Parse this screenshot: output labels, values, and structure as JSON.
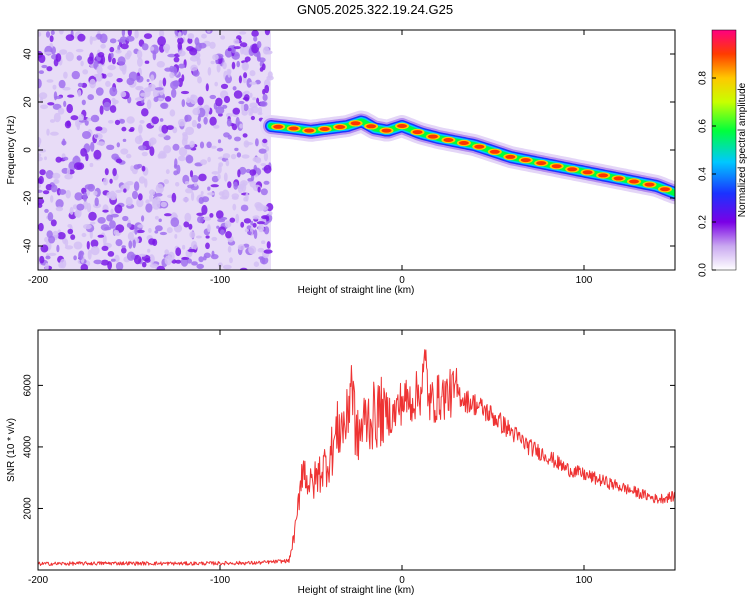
{
  "title": "GN05.2025.322.19.24.G25",
  "chart_data": [
    {
      "type": "heatmap",
      "name": "spectrogram",
      "xlabel": "Height of straight line (km)",
      "ylabel": "Frequency (Hz)",
      "xlim": [
        -200,
        150
      ],
      "ylim": [
        -50,
        50
      ],
      "xticks": [
        -200,
        -100,
        0,
        100
      ],
      "xtick_labels": [
        "-200",
        "-100",
        "0",
        "100"
      ],
      "yticks": [
        -40,
        -20,
        0,
        20,
        40
      ],
      "ytick_labels": [
        "-40",
        "-20",
        "0",
        "20",
        "40"
      ],
      "noise_region_km": [
        -200,
        -72
      ],
      "signal_track": {
        "x": [
          -72,
          -60,
          -50,
          -40,
          -30,
          -22,
          -15,
          -8,
          0,
          10,
          20,
          40,
          60,
          80,
          100,
          120,
          140,
          150
        ],
        "freq": [
          10,
          9,
          8,
          9,
          10,
          12,
          9,
          8,
          10,
          7,
          5,
          2,
          -3,
          -6,
          -9,
          -12,
          -15,
          -18
        ]
      },
      "colorbar": {
        "label": "Normalized spectral amplitude",
        "range": [
          0,
          1
        ],
        "ticks": [
          0.0,
          0.2,
          0.4,
          0.6,
          0.8
        ],
        "tick_labels": [
          "0.0",
          "0.2",
          "0.4",
          "0.6",
          "0.8"
        ]
      }
    },
    {
      "type": "line",
      "name": "snr",
      "xlabel": "Height of straight line (km)",
      "ylabel": "SNR (10 * v/v)",
      "xlim": [
        -200,
        150
      ],
      "ylim": [
        0,
        7800
      ],
      "xticks": [
        -200,
        -100,
        0,
        100
      ],
      "xtick_labels": [
        "-200",
        "-100",
        "0",
        "100"
      ],
      "yticks": [
        2000,
        4000,
        6000
      ],
      "ytick_labels": [
        "2000",
        "4000",
        "6000"
      ],
      "color": "#ee3333",
      "series": [
        {
          "name": "SNR",
          "x": [
            -200,
            -160,
            -120,
            -80,
            -62,
            -58,
            -55,
            -50,
            -45,
            -40,
            -35,
            -30,
            -28,
            -25,
            -20,
            -15,
            -10,
            -5,
            0,
            5,
            10,
            13,
            15,
            20,
            25,
            30,
            35,
            40,
            50,
            60,
            70,
            80,
            90,
            100,
            110,
            120,
            130,
            140,
            150
          ],
          "y": [
            200,
            220,
            210,
            230,
            300,
            1500,
            3400,
            2700,
            3200,
            3600,
            4600,
            4800,
            6500,
            4200,
            4900,
            5000,
            5200,
            5000,
            5500,
            5500,
            5800,
            6700,
            5400,
            5600,
            5700,
            5800,
            5500,
            5400,
            5000,
            4500,
            4000,
            3700,
            3300,
            3100,
            2900,
            2700,
            2500,
            2300,
            2400
          ]
        }
      ]
    }
  ]
}
